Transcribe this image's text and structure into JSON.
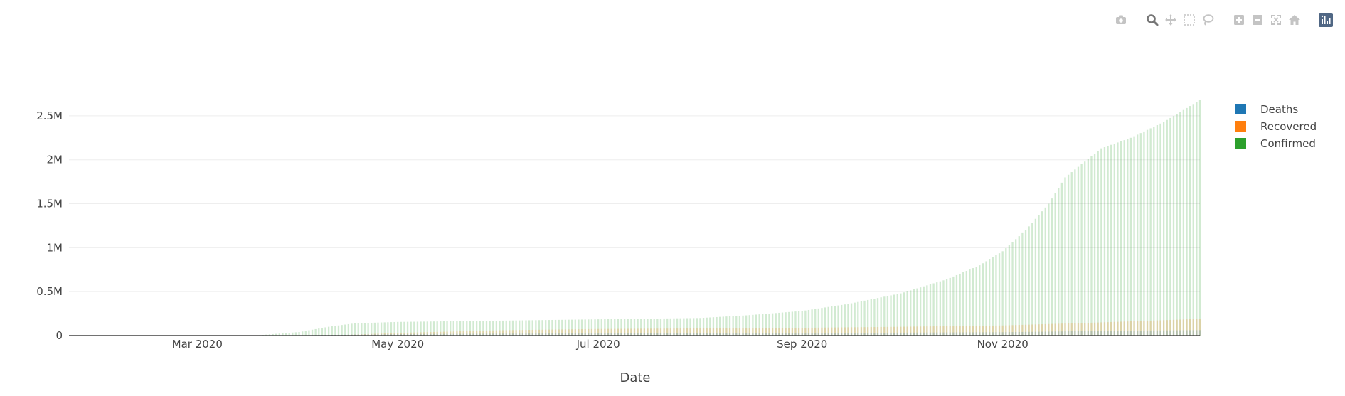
{
  "modebar": {
    "groups": [
      [
        "camera-icon"
      ],
      [
        "zoom-icon",
        "pan-icon",
        "box-select-icon",
        "lasso-select-icon"
      ],
      [
        "zoom-in-icon",
        "zoom-out-icon",
        "autoscale-icon",
        "reset-axes-icon"
      ],
      [
        "plotly-logo-icon"
      ]
    ],
    "active": "zoom-icon",
    "icon_color": "#c4c4c4",
    "active_color": "#767676",
    "logo_color": "#506784"
  },
  "chart_data": {
    "type": "bar",
    "barmode": "overlay",
    "xlabel": "Date",
    "ylabel": "",
    "title": "",
    "x_range": [
      "2020-01-22",
      "2020-12-31"
    ],
    "x_ticks": [
      {
        "date": "2020-03-01",
        "label": "Mar 2020"
      },
      {
        "date": "2020-05-01",
        "label": "May 2020"
      },
      {
        "date": "2020-07-01",
        "label": "Jul 2020"
      },
      {
        "date": "2020-09-01",
        "label": "Sep 2020"
      },
      {
        "date": "2020-11-01",
        "label": "Nov 2020"
      }
    ],
    "ylim": [
      0,
      2750000
    ],
    "y_ticks": [
      {
        "value": 0,
        "label": "0"
      },
      {
        "value": 500000,
        "label": "0.5M"
      },
      {
        "value": 1000000,
        "label": "1M"
      },
      {
        "value": 1500000,
        "label": "1.5M"
      },
      {
        "value": 2000000,
        "label": "2M"
      },
      {
        "value": 2500000,
        "label": "2.5M"
      }
    ],
    "grid": true,
    "legend_position": "top-right",
    "series": [
      {
        "name": "Deaths",
        "color": "#1f77b4",
        "points": [
          [
            "2020-01-22",
            0
          ],
          [
            "2020-03-20",
            0
          ],
          [
            "2020-04-01",
            3000
          ],
          [
            "2020-04-15",
            10000
          ],
          [
            "2020-05-01",
            16000
          ],
          [
            "2020-06-01",
            22000
          ],
          [
            "2020-07-01",
            26000
          ],
          [
            "2020-08-01",
            28000
          ],
          [
            "2020-09-01",
            30000
          ],
          [
            "2020-10-01",
            33000
          ],
          [
            "2020-11-01",
            38000
          ],
          [
            "2020-12-01",
            53000
          ],
          [
            "2020-12-31",
            62000
          ]
        ]
      },
      {
        "name": "Recovered",
        "color": "#ff7f0e",
        "points": [
          [
            "2020-01-22",
            0
          ],
          [
            "2020-03-20",
            0
          ],
          [
            "2020-04-01",
            1500
          ],
          [
            "2020-04-15",
            8000
          ],
          [
            "2020-05-01",
            30000
          ],
          [
            "2020-06-01",
            60000
          ],
          [
            "2020-07-01",
            75000
          ],
          [
            "2020-08-01",
            82000
          ],
          [
            "2020-09-01",
            88000
          ],
          [
            "2020-10-01",
            100000
          ],
          [
            "2020-11-01",
            115000
          ],
          [
            "2020-12-01",
            150000
          ],
          [
            "2020-12-31",
            190000
          ]
        ]
      },
      {
        "name": "Confirmed",
        "color": "#2ca02c",
        "points": [
          [
            "2020-01-22",
            0
          ],
          [
            "2020-03-14",
            0
          ],
          [
            "2020-03-20",
            5000
          ],
          [
            "2020-04-01",
            40000
          ],
          [
            "2020-04-10",
            100000
          ],
          [
            "2020-04-18",
            140000
          ],
          [
            "2020-05-01",
            155000
          ],
          [
            "2020-06-01",
            170000
          ],
          [
            "2020-07-01",
            185000
          ],
          [
            "2020-08-01",
            200000
          ],
          [
            "2020-08-15",
            230000
          ],
          [
            "2020-09-01",
            280000
          ],
          [
            "2020-09-15",
            360000
          ],
          [
            "2020-10-01",
            480000
          ],
          [
            "2020-10-15",
            640000
          ],
          [
            "2020-10-25",
            800000
          ],
          [
            "2020-11-01",
            960000
          ],
          [
            "2020-11-08",
            1200000
          ],
          [
            "2020-11-15",
            1500000
          ],
          [
            "2020-11-20",
            1800000
          ],
          [
            "2020-11-25",
            1950000
          ],
          [
            "2020-12-01",
            2130000
          ],
          [
            "2020-12-10",
            2250000
          ],
          [
            "2020-12-20",
            2430000
          ],
          [
            "2020-12-31",
            2680000
          ]
        ]
      }
    ]
  }
}
